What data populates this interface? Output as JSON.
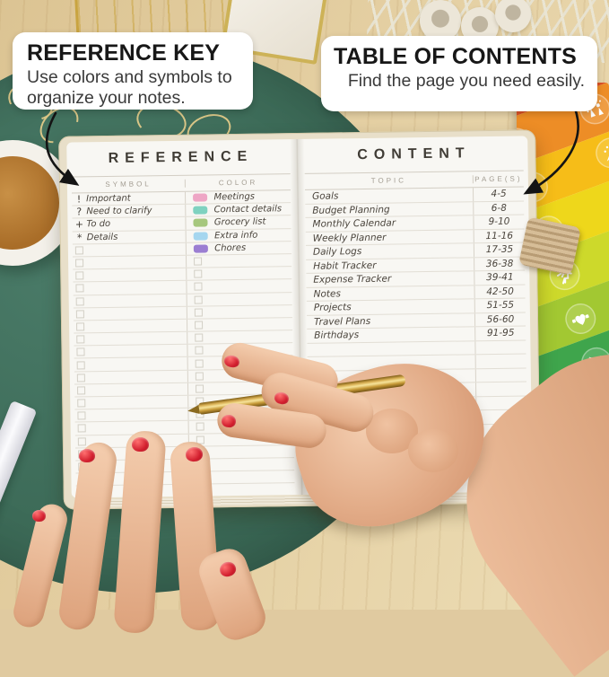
{
  "callouts": {
    "reference_key": {
      "title": "REFERENCE KEY",
      "body": "Use colors and symbols to organize your notes."
    },
    "table_of_contents": {
      "title": "TABLE OF CONTENTS",
      "body": "Find the page you need easily."
    }
  },
  "notebook": {
    "reference_page": {
      "title": "REFERENCE",
      "columns": [
        "SYMBOL",
        "COLOR"
      ],
      "symbols": [
        {
          "symbol": "!",
          "label": "Important"
        },
        {
          "symbol": "?",
          "label": "Need to clarify"
        },
        {
          "symbol": "+",
          "label": "To do"
        },
        {
          "symbol": "*",
          "label": "Details"
        }
      ],
      "colors": [
        {
          "color": "#eea6c5",
          "label": "Meetings"
        },
        {
          "color": "#7fd2c0",
          "label": "Contact details"
        },
        {
          "color": "#a6c77d",
          "label": "Grocery list"
        },
        {
          "color": "#a5d6ef",
          "label": "Extra info"
        },
        {
          "color": "#9b7ed2",
          "label": "Chores"
        }
      ],
      "empty_rows": 19
    },
    "content_page": {
      "title": "CONTENT",
      "columns": [
        "TOPIC",
        "PAGE(S)"
      ],
      "entries": [
        {
          "topic": "Goals",
          "pages": "4-5"
        },
        {
          "topic": "Budget Planning",
          "pages": "6-8"
        },
        {
          "topic": "Monthly Calendar",
          "pages": "9-10"
        },
        {
          "topic": "Weekly Planner",
          "pages": "11-16"
        },
        {
          "topic": "Daily Logs",
          "pages": "17-35"
        },
        {
          "topic": "Habit Tracker",
          "pages": "36-38"
        },
        {
          "topic": "Expense Tracker",
          "pages": "39-41"
        },
        {
          "topic": "Notes",
          "pages": "42-50"
        },
        {
          "topic": "Projects",
          "pages": "51-55"
        },
        {
          "topic": "Travel Plans",
          "pages": "56-60"
        },
        {
          "topic": "Birthdays",
          "pages": "91-95"
        }
      ],
      "empty_rows": 9
    }
  },
  "sticker_sheet": {
    "stripes": [
      {
        "color": "#dc5226",
        "icon": "growth-chart-icon"
      },
      {
        "color": "#ed8d26",
        "icon": "celebration-icon"
      },
      {
        "color": "#f6bd18",
        "icon": "party-cone-icon"
      },
      {
        "color": "#eed71b",
        "icon": "gift-icon"
      },
      {
        "color": "#cdd92b",
        "icon": "running-icon"
      },
      {
        "color": "#a2c832",
        "icon": "fitness-heart-icon"
      },
      {
        "color": "#3fa54c",
        "icon": "savings-chart-icon"
      },
      {
        "color": "#4fb2e5",
        "icon": "heart-icon"
      },
      {
        "color": "#564aa2",
        "icon": "reading-icon"
      },
      {
        "color": "#a93297",
        "icon": "meditation-icon"
      }
    ]
  },
  "scene": {
    "mat_color": "#3c6a57",
    "desk_color": "#e0caa0",
    "notebook_cover_color": "#e8dfc9",
    "pen_gold_color": "#d9b054",
    "nail_polish_color": "#cc2130",
    "arrow_color": "#141414"
  }
}
